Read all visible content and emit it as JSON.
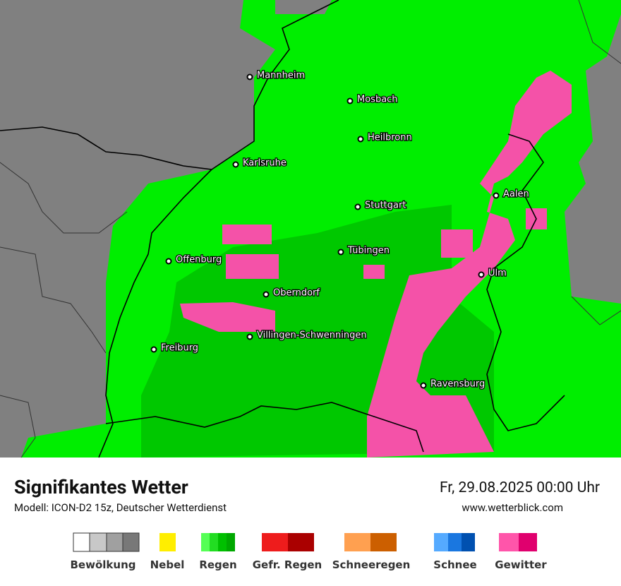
{
  "map": {
    "cities": [
      "Mannheim",
      "Mosbach",
      "Heilbronn",
      "Karlsruhe",
      "Aalen",
      "Stuttgart",
      "Tübingen",
      "Offenburg",
      "Ulm",
      "Oberndorf",
      "Villingen-Schwenningen",
      "Freiburg",
      "Ravensburg"
    ]
  },
  "footer": {
    "title": "Signifikantes Wetter",
    "model": "Modell: ICON-D2 15z, Deutscher Wetterdienst",
    "datetime": "Fr, 29.08.2025 00:00 Uhr",
    "website": "www.wetterblick.com"
  },
  "legend": {
    "items": [
      "Bewölkung",
      "Nebel",
      "Regen",
      "Gefr. Regen",
      "Schneeregen",
      "Schnee",
      "Gewitter"
    ]
  }
}
